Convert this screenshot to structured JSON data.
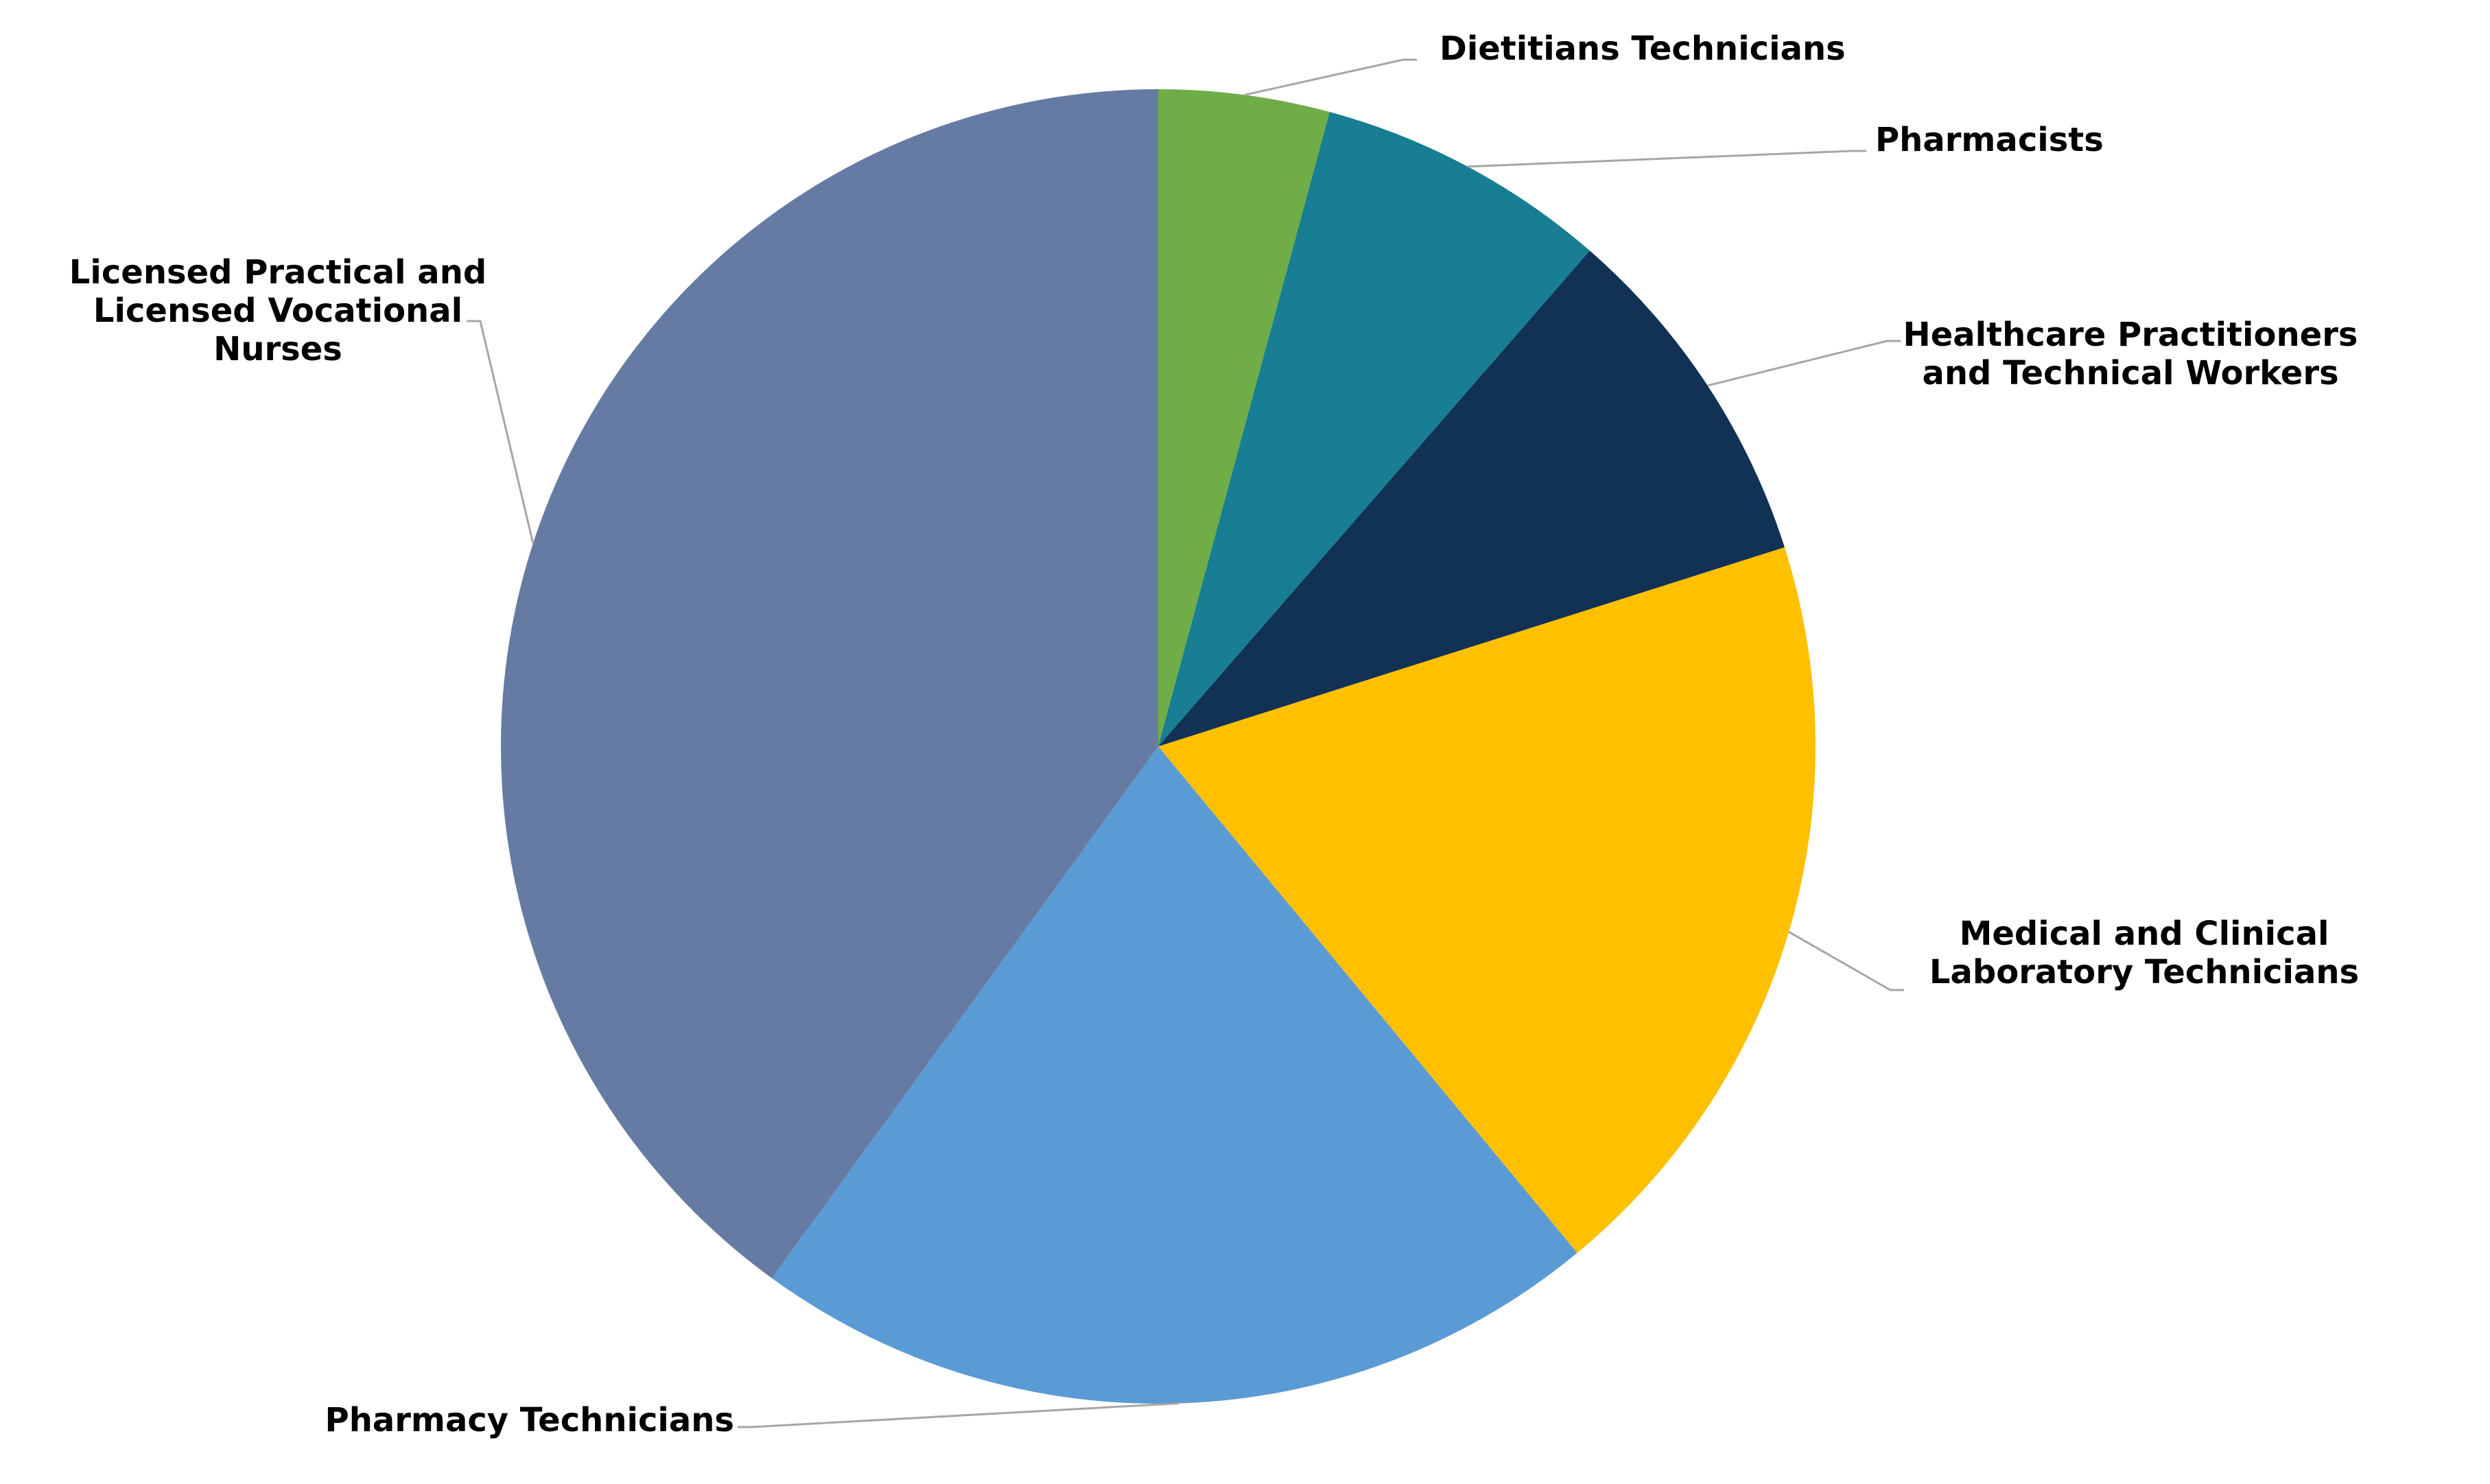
{
  "chart_data": {
    "type": "pie",
    "title": "",
    "start_angle_deg": 0,
    "direction": "clockwise",
    "legend": "none",
    "slices": [
      {
        "label": "Dietitians Technicians",
        "value": 4.2,
        "color": "#70ad47"
      },
      {
        "label": "Pharmacists",
        "value": 7.2,
        "color": "#177e93"
      },
      {
        "label": "Healthcare Practitioners and Technical Workers",
        "value": 8.7,
        "color": "#113155"
      },
      {
        "label": "Medical and Clinical Laboratory Technicians",
        "value": 18.9,
        "color": "#ffc000"
      },
      {
        "label": "Pharmacy Technicians",
        "value": 21.0,
        "color": "#5b9bd5"
      },
      {
        "label": "Licensed Practical and Licensed Vocational Nurses",
        "value": 40.0,
        "color": "#667ba3"
      }
    ]
  }
}
